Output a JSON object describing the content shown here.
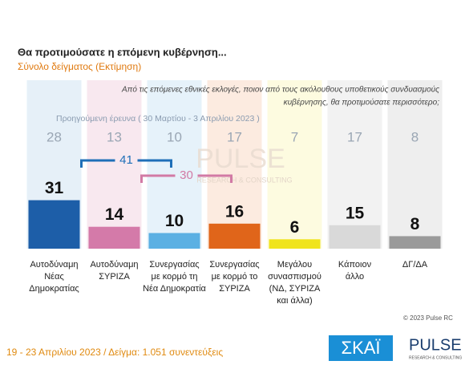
{
  "chart_data": {
    "type": "bar",
    "title": "Θα προτιμούσατε η επόμενη κυβέρνηση...",
    "subtitle": "Σύνολο δείγματος  (Εκτίμηση)",
    "question": [
      "Από τις επόμενες εθνικές εκλογές, ποιον από τους ακόλουθους υποθετικούς συνδυασμούς",
      "κυβέρνησης, θα προτιμούσατε περισσότερο;"
    ],
    "categories": [
      [
        "Αυτοδύναμη",
        "Νέας",
        "Δημοκρατίας"
      ],
      [
        "Αυτοδύναμη",
        "ΣΥΡΙΖΑ"
      ],
      [
        "Συνεργασίας",
        "με κορμό τη",
        "Νέα Δημοκρατία"
      ],
      [
        "Συνεργασίας",
        "με κορμό το",
        "ΣΥΡΙΖΑ"
      ],
      [
        "Μεγάλου",
        "συνασπισμού",
        "(ΝΔ, ΣΥΡΙΖΑ",
        "και άλλα)"
      ],
      [
        "Κάποιον",
        "άλλο"
      ],
      [
        "ΔΓ/ΔΑ"
      ]
    ],
    "values": [
      31,
      14,
      10,
      16,
      6,
      15,
      8
    ],
    "colors": [
      "#1d5ea8",
      "#d47aa9",
      "#5bb0e3",
      "#e0651a",
      "#f0e41c",
      "#d9d9d9",
      "#9a9a9a"
    ],
    "tints": [
      "#e6f0f8",
      "#f8e8ef",
      "#e6f2fa",
      "#fcebe0",
      "#fdfbe0",
      "#f2f2f2",
      "#eeeeee"
    ],
    "previous": {
      "label": "Προηγούμενη έρευνα  ( 30 Μαρτίου - 3 Απριλίου  2023 )",
      "values": [
        28,
        13,
        10,
        17,
        7,
        17,
        8
      ]
    },
    "brackets": [
      {
        "value": 41,
        "color": "#1f6fb8"
      },
      {
        "value": 30,
        "color": "#d27aa5"
      }
    ],
    "watermark": [
      "PULSE",
      "RESEARCH & CONSULTING"
    ],
    "copyright": "© 2023 Pulse RC",
    "footer": "19 - 23  Απριλίου  2023  /  Δείγμα:  1.051 συνεντεύξεις",
    "logos": [
      "ΣΚΑΪ",
      "PULSE",
      "RESEARCH & CONSULTING"
    ]
  }
}
